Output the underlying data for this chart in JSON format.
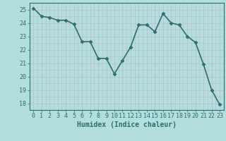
{
  "x": [
    0,
    1,
    2,
    3,
    4,
    5,
    6,
    7,
    8,
    9,
    10,
    11,
    12,
    13,
    14,
    15,
    16,
    17,
    18,
    19,
    20,
    21,
    22,
    23
  ],
  "y": [
    25.1,
    24.5,
    24.4,
    24.2,
    24.2,
    23.9,
    22.6,
    22.6,
    21.35,
    21.35,
    20.2,
    21.2,
    22.2,
    23.85,
    23.85,
    23.35,
    24.7,
    24.0,
    23.85,
    23.0,
    22.55,
    20.9,
    19.0,
    17.9
  ],
  "line_color": "#2d6e6e",
  "marker": "D",
  "marker_size": 2.5,
  "bg_color": "#b2dede",
  "grid_major_color": "#c8c8d8",
  "xlabel": "Humidex (Indice chaleur)",
  "ylim": [
    17.5,
    25.5
  ],
  "xlim": [
    -0.5,
    23.5
  ],
  "yticks": [
    18,
    19,
    20,
    21,
    22,
    23,
    24,
    25
  ],
  "xticks": [
    0,
    1,
    2,
    3,
    4,
    5,
    6,
    7,
    8,
    9,
    10,
    11,
    12,
    13,
    14,
    15,
    16,
    17,
    18,
    19,
    20,
    21,
    22,
    23
  ],
  "label_fontsize": 7,
  "tick_fontsize": 6,
  "linewidth": 1.2
}
